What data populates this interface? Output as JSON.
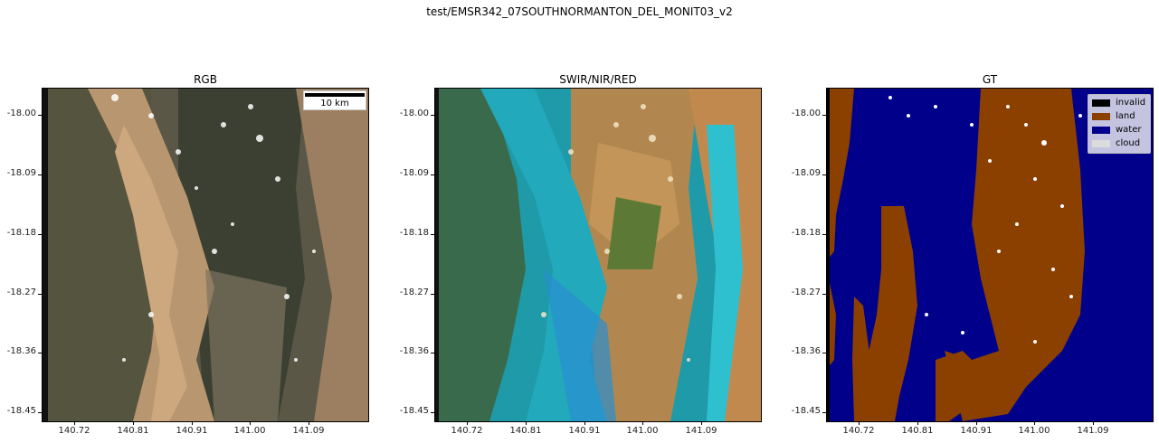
{
  "figure": {
    "title": "test/EMSR342_07SOUTHNORMANTON_DEL_MONIT03_v2"
  },
  "panels": [
    {
      "title": "RGB"
    },
    {
      "title": "SWIR/NIR/RED"
    },
    {
      "title": "GT"
    }
  ],
  "axes": {
    "y_ticks": [
      "-18.00",
      "-18.09",
      "-18.18",
      "-18.27",
      "-18.36",
      "-18.45"
    ],
    "x_ticks": [
      "140.72",
      "140.81",
      "140.91",
      "141.00",
      "141.09"
    ]
  },
  "scalebar": {
    "label": "10 km"
  },
  "legend": {
    "items": [
      {
        "label": "invalid",
        "color": "#000000"
      },
      {
        "label": "land",
        "color": "#8B4000"
      },
      {
        "label": "water",
        "color": "#00008B"
      },
      {
        "label": "cloud",
        "color": "#DCDCDC"
      }
    ]
  },
  "colors": {
    "rgb_base": "#5e5a4c",
    "rgb_sand": "#c9a27a",
    "swir_water": "#2fb3c0",
    "swir_land": "#b38a4d",
    "swir_veg": "#4a6a2e",
    "gt_water": "#00008B",
    "gt_land": "#8B4000"
  }
}
